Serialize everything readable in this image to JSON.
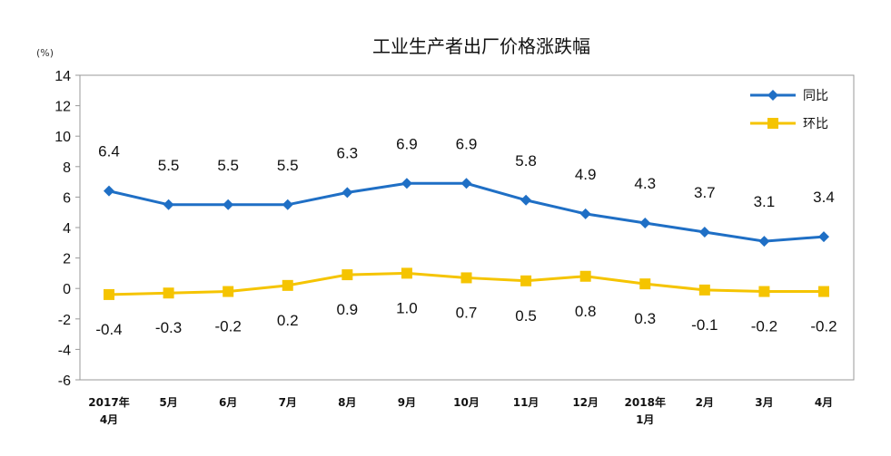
{
  "chart_data": {
    "type": "line",
    "title": "工业生产者出厂价格涨跌幅",
    "unit_label": "(%)",
    "ylim": [
      -6,
      14
    ],
    "yticks": [
      "14",
      "12",
      "10",
      "8",
      "6",
      "4",
      "2",
      "0",
      "-2",
      "-4",
      "-6"
    ],
    "categories": [
      [
        "2017年",
        "4月"
      ],
      [
        "5月"
      ],
      [
        "6月"
      ],
      [
        "7月"
      ],
      [
        "8月"
      ],
      [
        "9月"
      ],
      [
        "10月"
      ],
      [
        "11月"
      ],
      [
        "12月"
      ],
      [
        "2018年",
        "1月"
      ],
      [
        "2月"
      ],
      [
        "3月"
      ],
      [
        "4月"
      ]
    ],
    "series": [
      {
        "name": "同比",
        "color": "#1f6fc5",
        "marker": "diamond",
        "values": [
          6.4,
          5.5,
          5.5,
          5.5,
          6.3,
          6.9,
          6.9,
          5.8,
          4.9,
          4.3,
          3.7,
          3.1,
          3.4
        ],
        "labels": [
          "6.4",
          "5.5",
          "5.5",
          "5.5",
          "6.3",
          "6.9",
          "6.9",
          "5.8",
          "4.9",
          "4.3",
          "3.7",
          "3.1",
          "3.4"
        ]
      },
      {
        "name": "环比",
        "color": "#f5c400",
        "marker": "square",
        "values": [
          -0.4,
          -0.3,
          -0.2,
          0.2,
          0.9,
          1.0,
          0.7,
          0.5,
          0.8,
          0.3,
          -0.1,
          -0.2,
          -0.2
        ],
        "labels": [
          "-0.4",
          "-0.3",
          "-0.2",
          "0.2",
          "0.9",
          "1.0",
          "0.7",
          "0.5",
          "0.8",
          "0.3",
          "-0.1",
          "-0.2",
          "-0.2"
        ]
      }
    ],
    "grid": false,
    "legend_position": "top-right"
  }
}
